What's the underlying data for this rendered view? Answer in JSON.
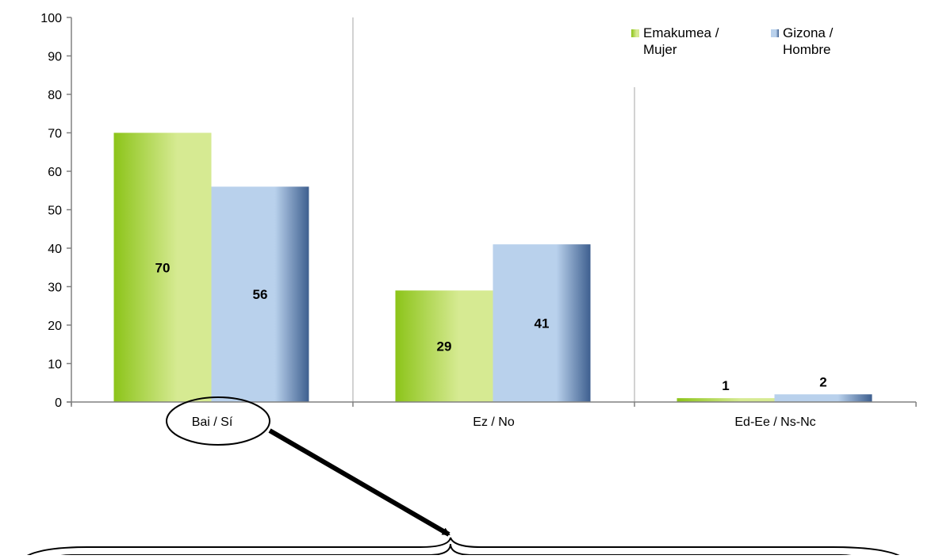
{
  "chart_data": {
    "type": "bar",
    "categories": [
      "Bai / Sí",
      "Ez / No",
      "Ed-Ee / Ns-Nc"
    ],
    "series": [
      {
        "name": "Emakumea / Mujer",
        "values": [
          70,
          29,
          1
        ]
      },
      {
        "name": "Gizona / Hombre",
        "values": [
          56,
          41,
          2
        ]
      }
    ],
    "data_labels": [
      [
        "70",
        "29",
        "1"
      ],
      [
        "56",
        "41",
        "2"
      ]
    ],
    "yticks": [
      0,
      10,
      20,
      30,
      40,
      50,
      60,
      70,
      80,
      90,
      100
    ],
    "ylim": [
      0,
      100
    ],
    "grid": false,
    "legend_position": "top-right",
    "legend": [
      {
        "lines": [
          "Emakumea /",
          "Mujer"
        ]
      },
      {
        "lines": [
          "Gizona /",
          "Hombre"
        ]
      }
    ],
    "colors": {
      "series_0": {
        "dark": "#8cc419",
        "light": "#d6ea92"
      },
      "series_1": {
        "dark": "#3e5f8f",
        "light": "#b9d1ec"
      }
    },
    "highlighted_category": "Bai / Sí"
  }
}
